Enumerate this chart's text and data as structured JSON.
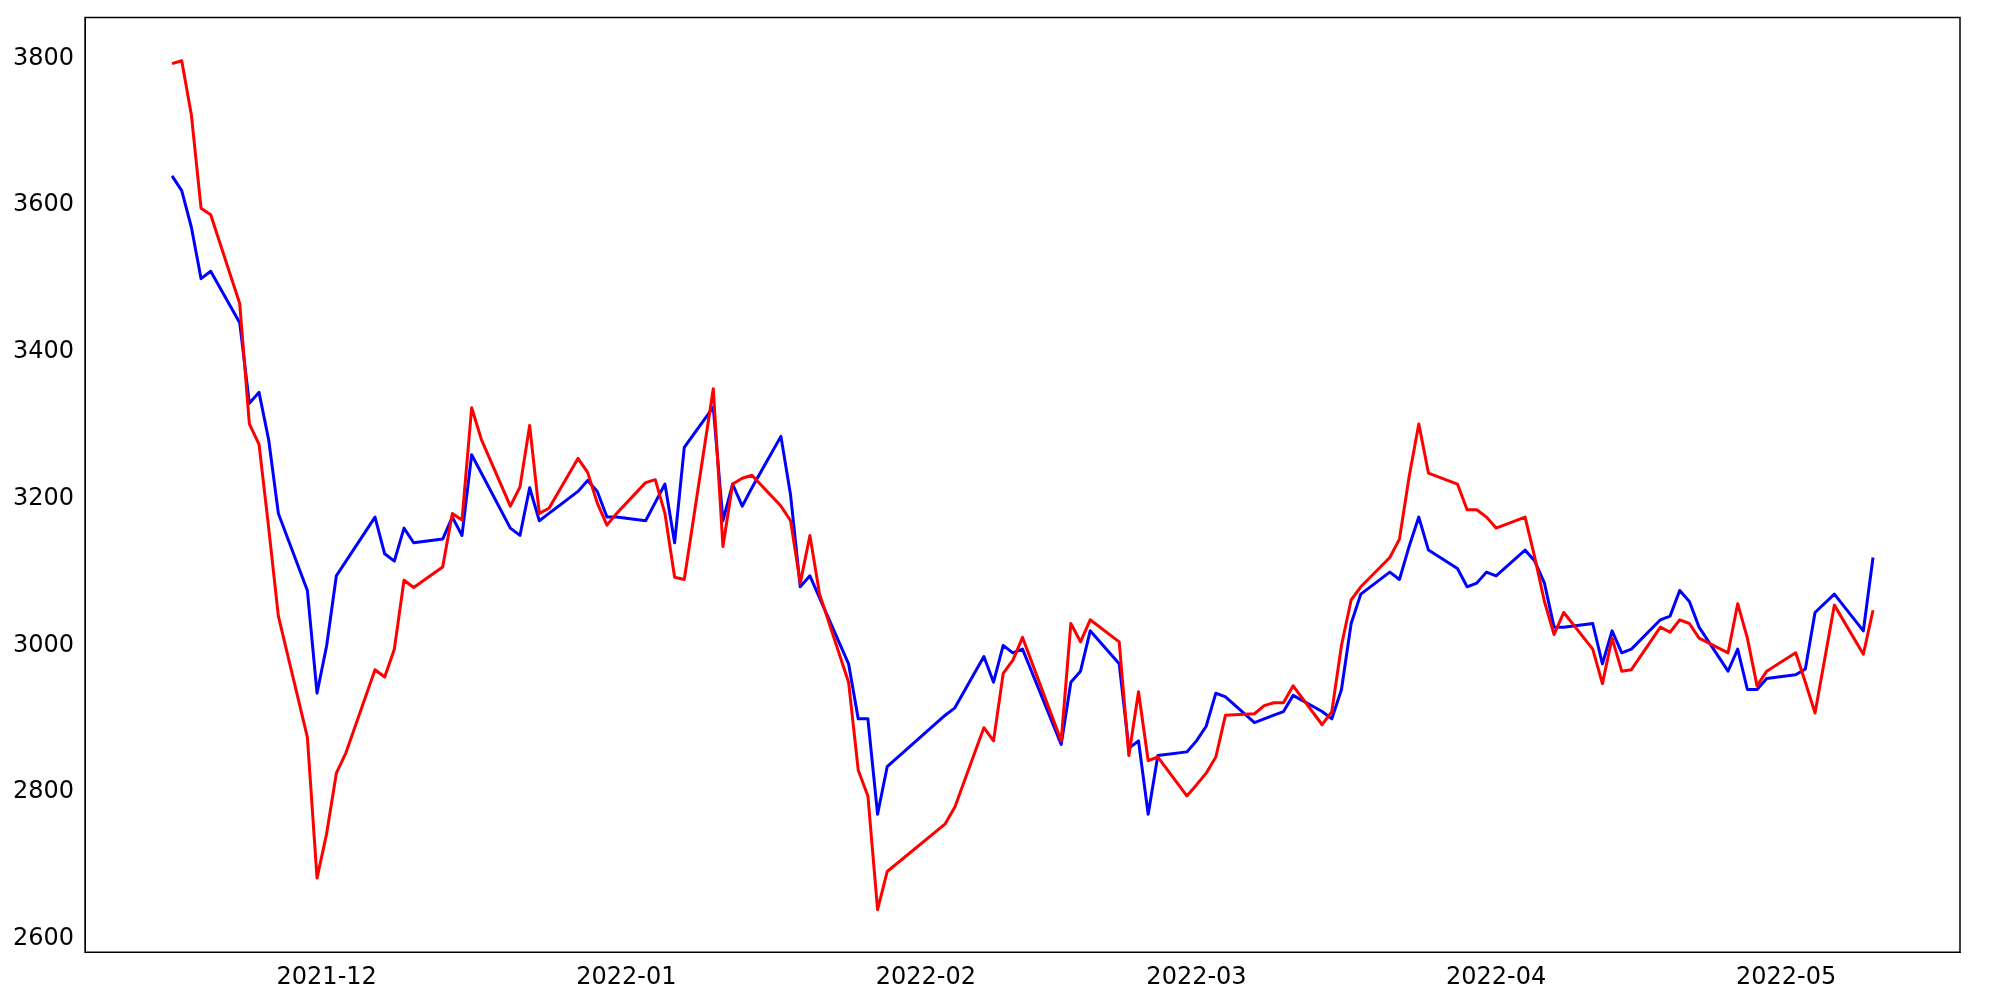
{
  "chart_data": {
    "type": "line",
    "marker": "none",
    "grid": false,
    "legend": false,
    "xlim": [
      "2021-11-06",
      "2022-05-19"
    ],
    "ylim": [
      2582,
      3856
    ],
    "xticks": [
      {
        "value": "2021-12-01",
        "label": "2021-12"
      },
      {
        "value": "2022-01-01",
        "label": "2022-01"
      },
      {
        "value": "2022-02-01",
        "label": "2022-02"
      },
      {
        "value": "2022-03-01",
        "label": "2022-03"
      },
      {
        "value": "2022-04-01",
        "label": "2022-04"
      },
      {
        "value": "2022-05-01",
        "label": "2022-05"
      }
    ],
    "yticks": [
      2600,
      2800,
      3000,
      3200,
      3400,
      3600,
      3800
    ],
    "x": [
      "2021-11-15",
      "2021-11-16",
      "2021-11-17",
      "2021-11-18",
      "2021-11-19",
      "2021-11-22",
      "2021-11-23",
      "2021-11-24",
      "2021-11-25",
      "2021-11-26",
      "2021-11-29",
      "2021-11-30",
      "2021-12-01",
      "2021-12-02",
      "2021-12-03",
      "2021-12-06",
      "2021-12-07",
      "2021-12-08",
      "2021-12-09",
      "2021-12-10",
      "2021-12-13",
      "2021-12-14",
      "2021-12-15",
      "2021-12-16",
      "2021-12-17",
      "2021-12-20",
      "2021-12-21",
      "2021-12-22",
      "2021-12-23",
      "2021-12-24",
      "2021-12-27",
      "2021-12-28",
      "2021-12-29",
      "2021-12-30",
      "2021-12-31",
      "2022-01-03",
      "2022-01-04",
      "2022-01-05",
      "2022-01-06",
      "2022-01-07",
      "2022-01-10",
      "2022-01-11",
      "2022-01-12",
      "2022-01-13",
      "2022-01-14",
      "2022-01-17",
      "2022-01-18",
      "2022-01-19",
      "2022-01-20",
      "2022-01-21",
      "2022-01-24",
      "2022-01-25",
      "2022-01-26",
      "2022-01-27",
      "2022-01-28",
      "2022-02-03",
      "2022-02-04",
      "2022-02-07",
      "2022-02-08",
      "2022-02-09",
      "2022-02-10",
      "2022-02-11",
      "2022-02-15",
      "2022-02-16",
      "2022-02-17",
      "2022-02-18",
      "2022-02-21",
      "2022-02-22",
      "2022-02-23",
      "2022-02-24",
      "2022-02-25",
      "2022-02-28",
      "2022-03-01",
      "2022-03-02",
      "2022-03-03",
      "2022-03-04",
      "2022-03-07",
      "2022-03-08",
      "2022-03-09",
      "2022-03-10",
      "2022-03-11",
      "2022-03-14",
      "2022-03-15",
      "2022-03-16",
      "2022-03-17",
      "2022-03-18",
      "2022-03-21",
      "2022-03-22",
      "2022-03-23",
      "2022-03-24",
      "2022-03-25",
      "2022-03-28",
      "2022-03-29",
      "2022-03-30",
      "2022-03-31",
      "2022-04-01",
      "2022-04-04",
      "2022-04-05",
      "2022-04-06",
      "2022-04-07",
      "2022-04-08",
      "2022-04-11",
      "2022-04-12",
      "2022-04-13",
      "2022-04-14",
      "2022-04-15",
      "2022-04-18",
      "2022-04-19",
      "2022-04-20",
      "2022-04-21",
      "2022-04-22",
      "2022-04-25",
      "2022-04-26",
      "2022-04-27",
      "2022-04-28",
      "2022-04-29",
      "2022-05-02",
      "2022-05-03",
      "2022-05-04",
      "2022-05-06",
      "2022-05-09",
      "2022-05-10"
    ],
    "series": [
      {
        "color": "#ff0000",
        "values": [
          3793,
          3797,
          3723,
          3596,
          3587,
          3466,
          3302,
          3274,
          3160,
          3040,
          2875,
          2683,
          2744,
          2826,
          2854,
          2967,
          2957,
          2995,
          3089,
          3079,
          3107,
          3180,
          3171,
          3324,
          3281,
          3190,
          3216,
          3300,
          3180,
          3187,
          3255,
          3236,
          3194,
          3164,
          3180,
          3222,
          3226,
          3180,
          3093,
          3090,
          3350,
          3135,
          3220,
          3228,
          3232,
          3190,
          3170,
          3085,
          3150,
          3070,
          2950,
          2830,
          2795,
          2640,
          2692,
          2757,
          2780,
          2888,
          2870,
          2962,
          2980,
          3011,
          2870,
          3030,
          3005,
          3035,
          3005,
          2850,
          2937,
          2843,
          2848,
          2795,
          2810,
          2826,
          2848,
          2905,
          2907,
          2918,
          2922,
          2922,
          2945,
          2892,
          2910,
          3000,
          3062,
          3080,
          3120,
          3145,
          3230,
          3302,
          3235,
          3220,
          3185,
          3185,
          3175,
          3160,
          3175,
          3120,
          3060,
          3015,
          3045,
          2995,
          2948,
          3010,
          2965,
          2967,
          3025,
          3018,
          3035,
          3030,
          3010,
          2990,
          3057,
          3010,
          2945,
          2965,
          2990,
          2950,
          2908,
          3055,
          2988,
          3048
        ]
      },
      {
        "color": "#0000ff",
        "values": [
          3640,
          3620,
          3570,
          3500,
          3510,
          3440,
          3330,
          3345,
          3280,
          3180,
          3075,
          2935,
          3000,
          3095,
          3115,
          3175,
          3125,
          3115,
          3160,
          3140,
          3145,
          3175,
          3150,
          3260,
          3235,
          3160,
          3150,
          3215,
          3170,
          3180,
          3210,
          3225,
          3210,
          3175,
          3175,
          3170,
          3195,
          3220,
          3140,
          3270,
          3325,
          3170,
          3220,
          3190,
          3215,
          3285,
          3205,
          3080,
          3095,
          3065,
          2975,
          2900,
          2900,
          2770,
          2835,
          2905,
          2915,
          2985,
          2950,
          3000,
          2990,
          2995,
          2865,
          2950,
          2965,
          3020,
          2975,
          2860,
          2870,
          2770,
          2850,
          2855,
          2870,
          2890,
          2935,
          2930,
          2895,
          2900,
          2905,
          2910,
          2932,
          2910,
          2900,
          2940,
          3030,
          3070,
          3100,
          3090,
          3135,
          3175,
          3130,
          3105,
          3080,
          3085,
          3100,
          3095,
          3130,
          3115,
          3085,
          3025,
          3025,
          3030,
          2975,
          3020,
          2990,
          2995,
          3035,
          3040,
          3075,
          3060,
          3025,
          2965,
          2995,
          2940,
          2940,
          2955,
          2960,
          2968,
          3045,
          3070,
          3020,
          3120
        ]
      }
    ]
  }
}
